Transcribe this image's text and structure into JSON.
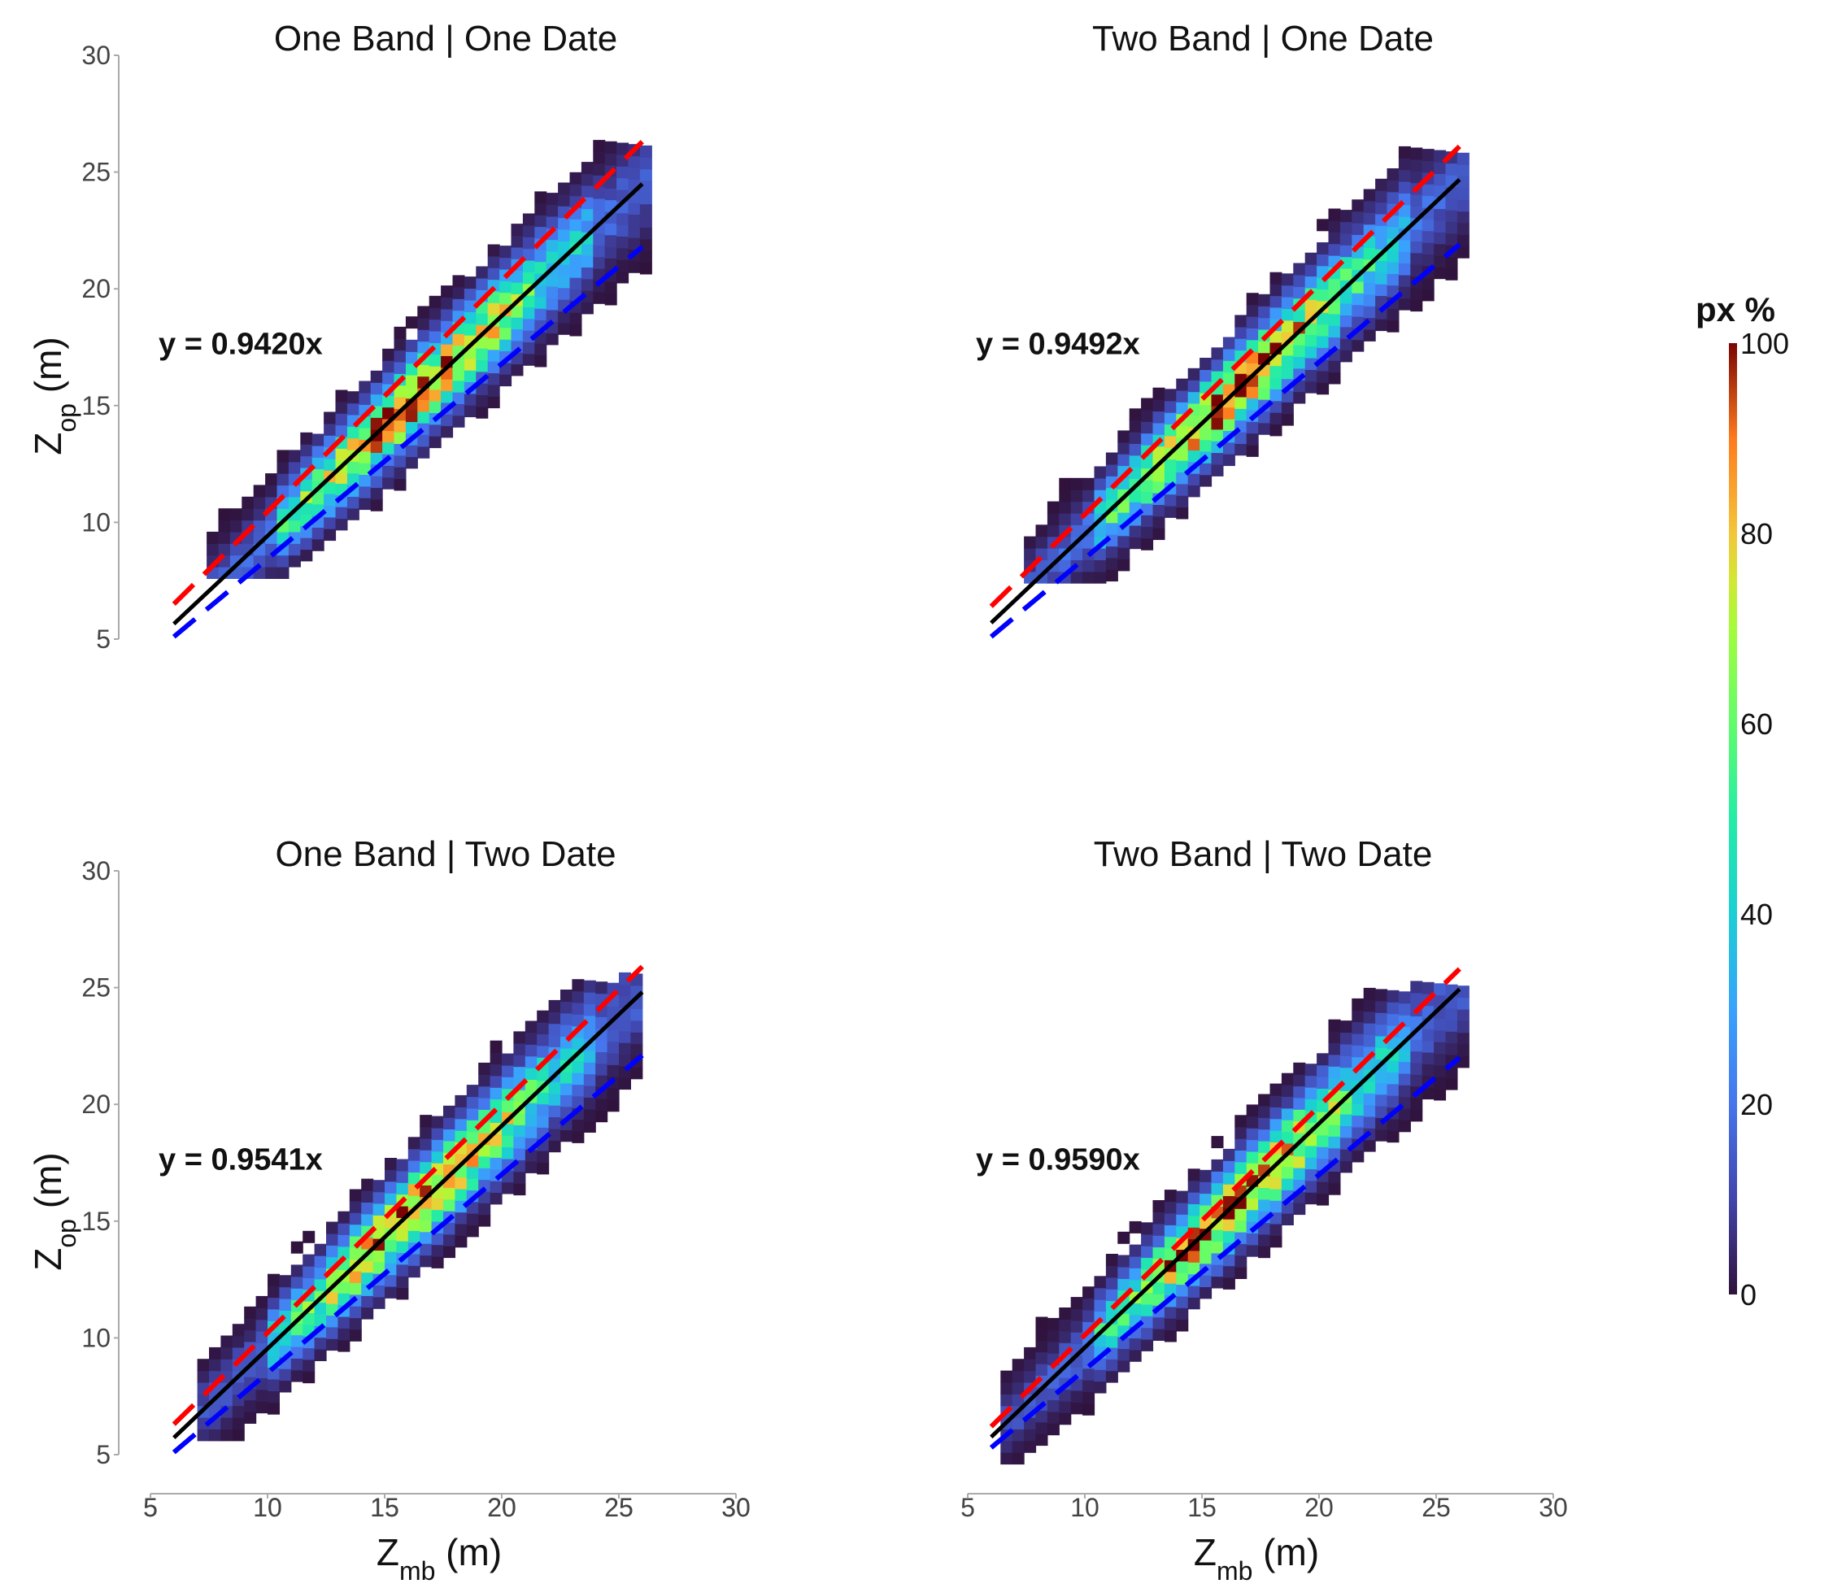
{
  "chart_data": {
    "type": "heatmap",
    "panels": [
      {
        "title": "One Band | One Date",
        "equation": "y = 0.9420x",
        "slope": 0.942,
        "xlabel_main": "",
        "xlabel_sub": "",
        "xlabel_unit": "",
        "ylabel_main": "Z",
        "ylabel_sub": "op",
        "ylabel_unit": " (m)",
        "xlim": [
          5,
          30
        ],
        "ylim": [
          5,
          30
        ],
        "xticks": [
          "5",
          "10",
          "15",
          "20",
          "25",
          "30"
        ],
        "yticks": [
          "5",
          "10",
          "15",
          "20",
          "25",
          "30"
        ],
        "upper_bound": [
          [
            6,
            6.5
          ],
          [
            26,
            26.3
          ]
        ],
        "lower_bound": [
          [
            6,
            5.1
          ],
          [
            26,
            21.8
          ]
        ],
        "density_range": [
          [
            7.4,
            7.6
          ],
          [
            26,
            26
          ]
        ]
      },
      {
        "title": "Two Band | One Date",
        "equation": "y = 0.9492x",
        "slope": 0.9492,
        "xlabel_main": "",
        "xlabel_sub": "",
        "xlabel_unit": "",
        "ylabel_main": "",
        "ylabel_sub": "",
        "ylabel_unit": "",
        "xlim": [
          5,
          30
        ],
        "ylim": [
          5,
          30
        ],
        "xticks": [],
        "yticks": [],
        "upper_bound": [
          [
            6,
            6.4
          ],
          [
            26,
            26.1
          ]
        ],
        "lower_bound": [
          [
            6,
            5.1
          ],
          [
            26,
            21.9
          ]
        ],
        "density_range": [
          [
            7.4,
            7.4
          ],
          [
            26,
            25.7
          ]
        ]
      },
      {
        "title": "One Band | Two Date",
        "equation": "y = 0.9541x",
        "slope": 0.9541,
        "xlabel_main": "Z",
        "xlabel_sub": "mb",
        "xlabel_unit": " (m)",
        "ylabel_main": "Z",
        "ylabel_sub": "op",
        "ylabel_unit": " (m)",
        "xlim": [
          5,
          30
        ],
        "ylim": [
          5,
          30
        ],
        "xticks": [
          "5",
          "10",
          "15",
          "20",
          "25",
          "30"
        ],
        "yticks": [
          "5",
          "10",
          "15",
          "20",
          "25",
          "30"
        ],
        "upper_bound": [
          [
            6,
            6.3
          ],
          [
            26,
            25.9
          ]
        ],
        "lower_bound": [
          [
            6,
            5.1
          ],
          [
            26,
            22.1
          ]
        ],
        "density_range": [
          [
            7.0,
            5.6
          ],
          [
            26,
            25.2
          ]
        ]
      },
      {
        "title": "Two Band | Two Date",
        "equation": "y = 0.9590x",
        "slope": 0.959,
        "xlabel_main": "Z",
        "xlabel_sub": "mb",
        "xlabel_unit": " (m)",
        "ylabel_main": "",
        "ylabel_sub": "",
        "ylabel_unit": "",
        "xlim": [
          5,
          30
        ],
        "ylim": [
          5,
          30
        ],
        "xticks": [
          "5",
          "10",
          "15",
          "20",
          "25",
          "30"
        ],
        "yticks": [],
        "upper_bound": [
          [
            6,
            6.2
          ],
          [
            26,
            25.8
          ]
        ],
        "lower_bound": [
          [
            6,
            5.3
          ],
          [
            26,
            22.0
          ]
        ],
        "density_range": [
          [
            6.4,
            4.6
          ],
          [
            26,
            24.8
          ]
        ]
      }
    ],
    "legend": {
      "title": "px %",
      "ticks": [
        "0",
        "20",
        "40",
        "60",
        "80",
        "100"
      ],
      "range": [
        0,
        100
      ],
      "placement": "right"
    },
    "series_colors": {
      "regression": "#000000",
      "upper": "#ff0000",
      "lower": "#0000ff"
    }
  }
}
